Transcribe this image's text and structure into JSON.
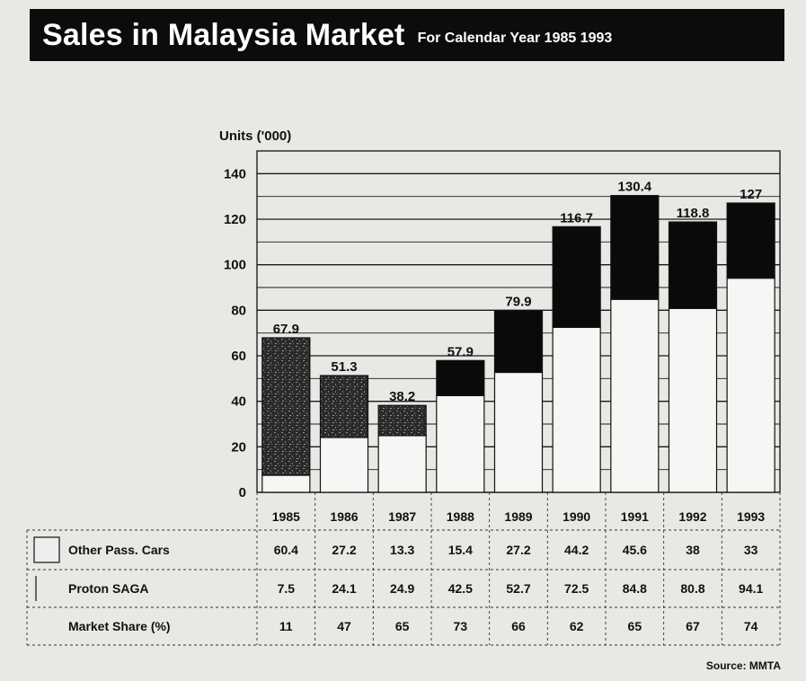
{
  "title": "Sales in Malaysia Market",
  "subtitle": "For Calendar Year 1985 1993",
  "source": "Source: MMTA",
  "chart_data": {
    "type": "bar",
    "stacked": true,
    "ylabel": "Units ('000)",
    "ylim": [
      0,
      140
    ],
    "yticks": [
      0,
      20,
      40,
      60,
      80,
      100,
      120,
      140
    ],
    "categories": [
      "1985",
      "1986",
      "1987",
      "1988",
      "1989",
      "1990",
      "1991",
      "1992",
      "1993"
    ],
    "totals": [
      "67.9",
      "51.3",
      "38.2",
      "57.9",
      "79.9",
      "116.7",
      "130.4",
      "118.8",
      "127"
    ],
    "series": [
      {
        "name": "Proton SAGA",
        "values": [
          7.5,
          24.1,
          24.9,
          42.5,
          52.7,
          72.5,
          84.8,
          80.8,
          94.1
        ]
      },
      {
        "name": "Other Pass. Cars",
        "values": [
          60.4,
          27.2,
          13.3,
          15.4,
          27.2,
          44.2,
          45.6,
          38,
          33
        ]
      }
    ],
    "table": {
      "rows": [
        {
          "label": "Other Pass. Cars",
          "values": [
            "60.4",
            "27.2",
            "13.3",
            "15.4",
            "27.2",
            "44.2",
            "45.6",
            "38",
            "33"
          ]
        },
        {
          "label": "Proton SAGA",
          "values": [
            "7.5",
            "24.1",
            "24.9",
            "42.5",
            "52.7",
            "72.5",
            "84.8",
            "80.8",
            "94.1"
          ]
        },
        {
          "label": "Market Share (%)",
          "values": [
            "11",
            "47",
            "65",
            "73",
            "66",
            "62",
            "65",
            "67",
            "74"
          ]
        }
      ]
    },
    "colors": {
      "other_early": "#3a3a3a",
      "other_late": "#0a0a0a",
      "proton": "#f6f6f4"
    },
    "grid": true
  }
}
